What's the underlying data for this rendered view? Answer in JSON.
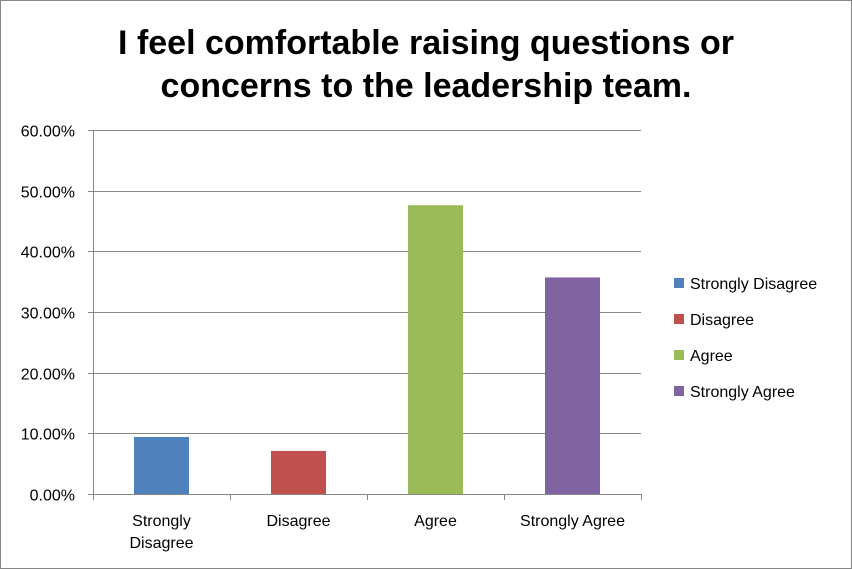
{
  "chart_data": {
    "type": "bar",
    "title_lines": [
      "I feel comfortable raising questions or",
      "concerns to the leadership team."
    ],
    "categories": [
      "Strongly Disagree",
      "Disagree",
      "Agree",
      "Strongly Agree"
    ],
    "category_label_lines": [
      [
        "Strongly",
        "Disagree"
      ],
      [
        "Disagree"
      ],
      [
        "Agree"
      ],
      [
        "Strongly Agree"
      ]
    ],
    "values": [
      0.094,
      0.071,
      0.476,
      0.357
    ],
    "colors": [
      "#4f81bd",
      "#c0504d",
      "#9bbb59",
      "#8064a2"
    ],
    "ylim": [
      0,
      0.6
    ],
    "yticks": [
      0,
      0.1,
      0.2,
      0.3,
      0.4,
      0.5,
      0.6
    ],
    "ytick_labels": [
      "0.00%",
      "10.00%",
      "20.00%",
      "30.00%",
      "40.00%",
      "50.00%",
      "60.00%"
    ],
    "grid": true,
    "xlabel": "",
    "ylabel": "",
    "legend": {
      "position": "right",
      "entries": [
        "Strongly Disagree",
        "Disagree",
        "Agree",
        "Strongly Agree"
      ]
    }
  }
}
